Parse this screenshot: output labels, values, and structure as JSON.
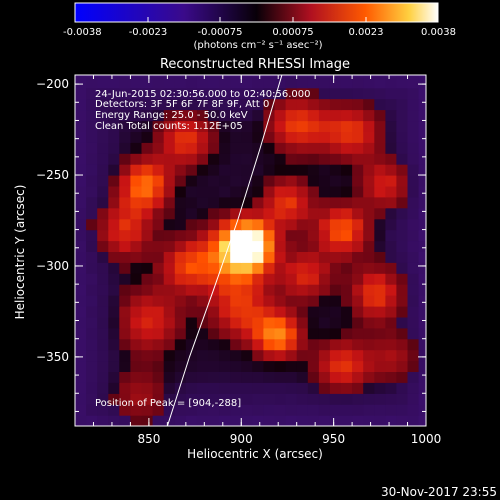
{
  "colorbar": {
    "ticks": [
      "-0.0038",
      "-0.0023",
      "-0.00075",
      "0.00075",
      "0.0023",
      "0.0038"
    ],
    "units_label": "(photons cm⁻² s⁻¹ asec⁻²)",
    "colormap": "black-blue-purple-red-orange-yellow-white"
  },
  "chart_data": {
    "type": "heatmap",
    "title": "Reconstructed RHESSI Image",
    "xlabel": "Heliocentric X (arcsec)",
    "ylabel": "Heliocentric Y (arcsec)",
    "xlim": [
      810,
      1000
    ],
    "ylim": [
      -388,
      -195
    ],
    "x_ticks": [
      850,
      900,
      950,
      1000
    ],
    "x_tick_labels": [
      "850",
      "900",
      "950",
      "1000"
    ],
    "y_ticks": [
      -200,
      -250,
      -300,
      -350
    ],
    "y_tick_labels": [
      "−200",
      "−250",
      "−300",
      "−350"
    ],
    "annotations": [
      "24-Jun-2015 02:30:56.000 to 02:40:56.000",
      "Detectors: 3F 5F 6F 7F 8F 9F, Att 0",
      "Energy Range: 25.0 - 50.0 keV",
      "Clean     Total counts: 1.12E+05"
    ],
    "peak_label": "Position of Peak = [904,-288]",
    "peak": {
      "x": 904,
      "y": -288
    },
    "limb_curve": {
      "x": [
        860,
        872,
        885,
        898,
        910,
        922
      ],
      "y": [
        -388,
        -350,
        -313,
        -275,
        -236,
        -195
      ]
    },
    "blobs": [
      {
        "x": 904,
        "y": -288,
        "intensity": 1.0,
        "spread": 9
      },
      {
        "x": 895,
        "y": -295,
        "intensity": 0.55,
        "spread": 14
      },
      {
        "x": 848,
        "y": -255,
        "intensity": 0.6,
        "spread": 10
      },
      {
        "x": 835,
        "y": -280,
        "intensity": 0.45,
        "spread": 12
      },
      {
        "x": 870,
        "y": -230,
        "intensity": 0.45,
        "spread": 11
      },
      {
        "x": 930,
        "y": -220,
        "intensity": 0.5,
        "spread": 12
      },
      {
        "x": 960,
        "y": -225,
        "intensity": 0.45,
        "spread": 12
      },
      {
        "x": 955,
        "y": -280,
        "intensity": 0.55,
        "spread": 10
      },
      {
        "x": 980,
        "y": -255,
        "intensity": 0.45,
        "spread": 10
      },
      {
        "x": 975,
        "y": -315,
        "intensity": 0.5,
        "spread": 11
      },
      {
        "x": 920,
        "y": -338,
        "intensity": 0.65,
        "spread": 9
      },
      {
        "x": 900,
        "y": -325,
        "intensity": 0.4,
        "spread": 12
      },
      {
        "x": 850,
        "y": -330,
        "intensity": 0.4,
        "spread": 13
      },
      {
        "x": 845,
        "y": -375,
        "intensity": 0.35,
        "spread": 12
      },
      {
        "x": 955,
        "y": -355,
        "intensity": 0.45,
        "spread": 11
      },
      {
        "x": 985,
        "y": -350,
        "intensity": 0.35,
        "spread": 10
      },
      {
        "x": 870,
        "y": -300,
        "intensity": 0.4,
        "spread": 10
      },
      {
        "x": 925,
        "y": -265,
        "intensity": 0.45,
        "spread": 10
      },
      {
        "x": 935,
        "y": -305,
        "intensity": 0.4,
        "spread": 10
      }
    ]
  },
  "footer": {
    "date": "30-Nov-2017 23:55"
  }
}
